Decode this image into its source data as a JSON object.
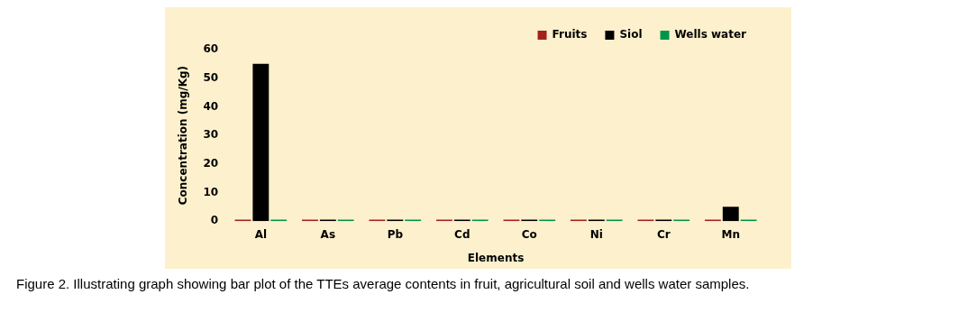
{
  "chart_data": {
    "type": "bar",
    "xlabel": "Elements",
    "ylabel": "Concentration (mg/Kg)",
    "categories": [
      "Al",
      "As",
      "Pb",
      "Cd",
      "Co",
      "Ni",
      "Cr",
      "Mn"
    ],
    "series": [
      {
        "name": "Fruits",
        "color": "#a3201f",
        "values": [
          0.5,
          0.5,
          0.5,
          0.5,
          0.5,
          0.5,
          0.5,
          0.5
        ]
      },
      {
        "name": "Siol",
        "color": "#000000",
        "values": [
          55,
          0.5,
          0.5,
          0.5,
          0.5,
          0.5,
          0.5,
          5
        ]
      },
      {
        "name": "Wells water",
        "color": "#00934a",
        "values": [
          0.5,
          0.5,
          0.5,
          0.5,
          0.5,
          0.5,
          0.5,
          0.5
        ]
      }
    ],
    "ylim": [
      0,
      60
    ],
    "yticks": [
      0,
      10,
      20,
      30,
      40,
      50,
      60
    ],
    "grid": false,
    "legend": "top right",
    "annotations": [
      "Figure 2. Illustrating graph showing bar plot of the TTEs average contents in fruit, agricultural soil and wells water samples."
    ]
  }
}
